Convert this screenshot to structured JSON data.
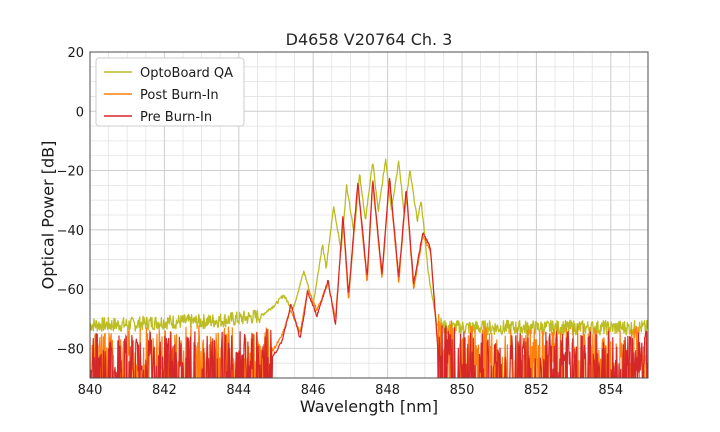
{
  "chart_data": {
    "type": "line",
    "title": "D4658 V20764 Ch. 3",
    "xlabel": "Wavelength [nm]",
    "ylabel": "Optical Power [dB]",
    "xlim": [
      840,
      855
    ],
    "ylim": [
      -90,
      20
    ],
    "x_ticks": [
      "840",
      "842",
      "844",
      "846",
      "848",
      "850",
      "852",
      "854"
    ],
    "y_ticks": [
      "20",
      "0",
      "−20",
      "−40",
      "−60",
      "−80"
    ],
    "grid": true,
    "legend_position": "top-left",
    "series": [
      {
        "name": "OptoBoard QA",
        "color": "#bcbd22",
        "x": [
          840.0,
          841.0,
          842.0,
          843.0,
          844.0,
          844.6,
          845.0,
          845.2,
          845.45,
          845.75,
          846.0,
          846.25,
          846.35,
          846.55,
          846.75,
          846.9,
          847.1,
          847.25,
          847.4,
          847.6,
          847.75,
          847.95,
          848.1,
          848.3,
          848.45,
          848.6,
          848.8,
          848.9,
          849.1,
          849.3,
          849.5,
          850.0,
          851.0,
          852.0,
          853.0,
          854.0,
          855.0
        ],
        "y": [
          -72,
          -72,
          -71,
          -71,
          -70,
          -69,
          -65,
          -62,
          -67,
          -54,
          -65,
          -45,
          -53,
          -32,
          -47,
          -25,
          -41,
          -21,
          -37,
          -17,
          -34,
          -16,
          -33,
          -17,
          -35,
          -20,
          -37,
          -30,
          -55,
          -70,
          -73,
          -73,
          -73,
          -73,
          -73,
          -73,
          -73
        ]
      },
      {
        "name": "Post Burn-In",
        "color": "#ff7f0e",
        "x": [
          840.0,
          841.0,
          842.0,
          843.0,
          844.0,
          844.9,
          845.15,
          845.4,
          845.65,
          845.85,
          846.1,
          846.4,
          846.6,
          846.8,
          846.95,
          847.2,
          847.45,
          847.6,
          847.85,
          848.05,
          848.3,
          848.5,
          848.7,
          848.95,
          849.15,
          849.35,
          850.0,
          851.0,
          852.0,
          853.0,
          854.0,
          855.0
        ],
        "y": [
          -82,
          -82,
          -83,
          -82,
          -82,
          -81,
          -76,
          -67,
          -75,
          -60,
          -67,
          -58,
          -70,
          -36,
          -64,
          -25,
          -58,
          -24,
          -57,
          -23,
          -58,
          -27,
          -60,
          -42,
          -47,
          -78,
          -82,
          -82,
          -83,
          -82,
          -82,
          -82
        ]
      },
      {
        "name": "Pre Burn-In",
        "color": "#d62728",
        "x": [
          840.0,
          841.0,
          842.0,
          843.0,
          844.0,
          844.9,
          845.15,
          845.4,
          845.65,
          845.85,
          846.1,
          846.4,
          846.6,
          846.8,
          846.95,
          847.2,
          847.45,
          847.6,
          847.85,
          848.05,
          848.3,
          848.5,
          848.7,
          848.95,
          849.15,
          849.35,
          850.0,
          851.0,
          852.0,
          853.0,
          854.0,
          855.0
        ],
        "y": [
          -84,
          -84,
          -84,
          -84,
          -84,
          -83,
          -78,
          -65,
          -77,
          -61,
          -69,
          -57,
          -72,
          -35,
          -62,
          -24,
          -56,
          -23,
          -55,
          -22,
          -56,
          -26,
          -58,
          -41,
          -46,
          -80,
          -84,
          -84,
          -84,
          -84,
          -84,
          -84
        ]
      }
    ]
  }
}
